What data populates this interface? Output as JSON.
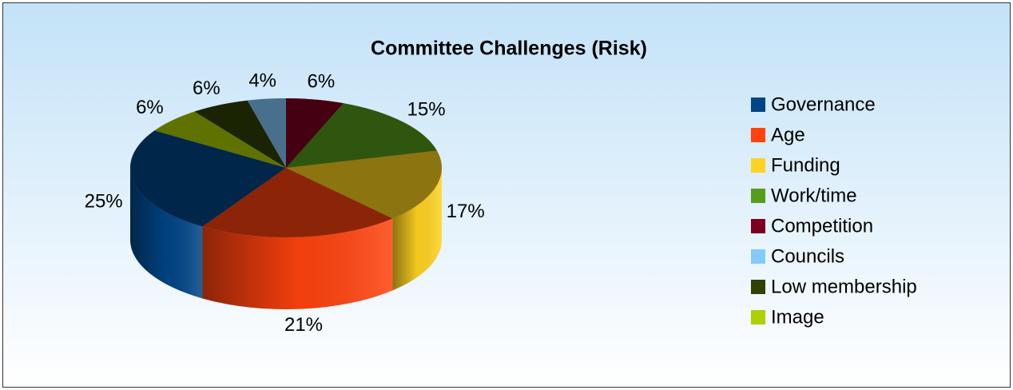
{
  "chart_data": {
    "type": "pie3d",
    "title": "Committee Challenges (Risk)",
    "categories": [
      "Governance",
      "Age",
      "Funding",
      "Work/time",
      "Competition",
      "Councils",
      "Low membership",
      "Image"
    ],
    "values": [
      25,
      21,
      17,
      15,
      6,
      4,
      6,
      6
    ],
    "value_labels": [
      "25%",
      "21%",
      "17%",
      "15%",
      "6%",
      "4%",
      "6%",
      "6%"
    ],
    "colors": [
      "#004586",
      "#ff420e",
      "#ffd320",
      "#579d1c",
      "#7e0021",
      "#83caff",
      "#314004",
      "#aecf00"
    ],
    "legend": "right"
  }
}
